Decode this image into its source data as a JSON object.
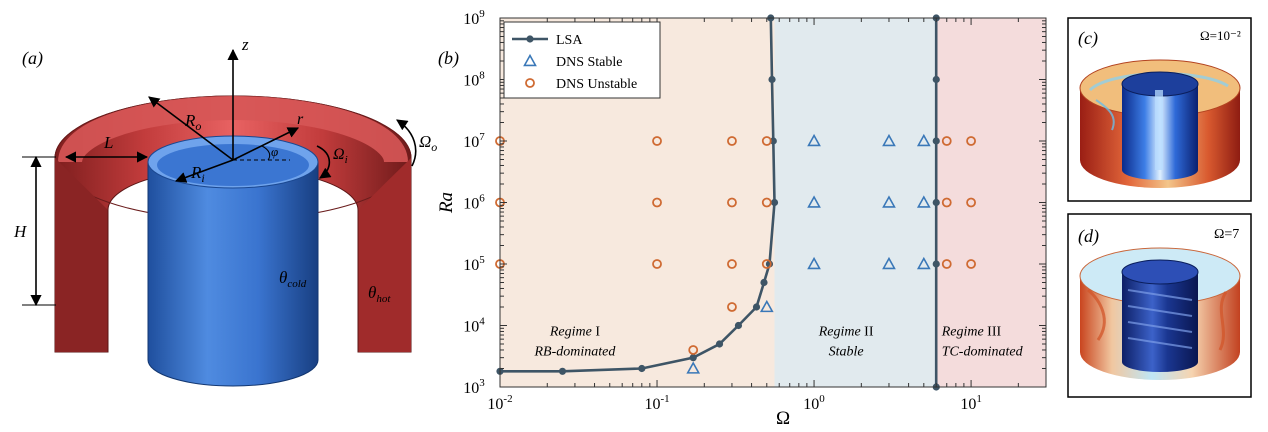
{
  "panels": {
    "a": {
      "label": "(a)"
    },
    "b": {
      "label": "(b)"
    },
    "c": {
      "label": "(c)",
      "value": "Ω=10⁻²"
    },
    "d": {
      "label": "(d)",
      "value": "Ω=7"
    }
  },
  "schematic": {
    "z": "z",
    "r": "r",
    "phi": "φ",
    "Ro": "R",
    "Ro_sub": "o",
    "Ri": "R",
    "Ri_sub": "i",
    "L": "L",
    "H": "H",
    "Omega_i": "Ω",
    "Omega_i_sub": "i",
    "Omega_o": "Ω",
    "Omega_o_sub": "o",
    "theta_cold": "θ",
    "theta_cold_sub": "cold",
    "theta_hot": "θ",
    "theta_hot_sub": "hot"
  },
  "chart_data": {
    "type": "scatter",
    "xlabel": "Ω",
    "ylabel": "Ra",
    "xscale": "log",
    "yscale": "log",
    "xlim": [
      0.01,
      30
    ],
    "ylim": [
      1000,
      1000000000
    ],
    "x_ticks": [
      {
        "base": "10",
        "exp": "-2",
        "value": 0.01
      },
      {
        "base": "10",
        "exp": "-1",
        "value": 0.1
      },
      {
        "base": "10",
        "exp": "0",
        "value": 1
      },
      {
        "base": "10",
        "exp": "1",
        "value": 10
      }
    ],
    "y_ticks": [
      {
        "base": "10",
        "exp": "3",
        "value": 1000
      },
      {
        "base": "10",
        "exp": "4",
        "value": 10000
      },
      {
        "base": "10",
        "exp": "5",
        "value": 100000
      },
      {
        "base": "10",
        "exp": "6",
        "value": 1000000
      },
      {
        "base": "10",
        "exp": "7",
        "value": 10000000
      },
      {
        "base": "10",
        "exp": "8",
        "value": 100000000
      },
      {
        "base": "10",
        "exp": "9",
        "value": 1000000000
      }
    ],
    "legend_position": "top-left",
    "regime_colors": [
      "#f7e9de",
      "#e1eaee",
      "#f4dcdc"
    ],
    "regimes": [
      {
        "name": "Regime I",
        "desc": "RB-dominated",
        "x_from": 0.01,
        "x_to": 0.56
      },
      {
        "name": "Regime II",
        "desc": "Stable",
        "x_from": 0.56,
        "x_to": 6
      },
      {
        "name": "Regime III",
        "desc": "TC-dominated",
        "x_from": 6,
        "x_to": 30
      }
    ],
    "series": [
      {
        "name": "LSA",
        "kind": "line",
        "color": "#3e5566",
        "segments": [
          [
            [
              0.01,
              1800
            ],
            [
              0.025,
              1800
            ],
            [
              0.08,
              2000
            ],
            [
              0.17,
              3000
            ],
            [
              0.25,
              5000
            ],
            [
              0.33,
              10000
            ],
            [
              0.43,
              20000
            ],
            [
              0.48,
              50000
            ],
            [
              0.52,
              100000
            ],
            [
              0.56,
              1000000
            ],
            [
              0.55,
              10000000
            ],
            [
              0.54,
              100000000
            ],
            [
              0.53,
              1000000000
            ]
          ],
          [
            [
              6.0,
              1000
            ],
            [
              6.0,
              10000000
            ],
            [
              6.0,
              1000000000
            ]
          ]
        ],
        "markers": [
          [
            0.01,
            1800
          ],
          [
            0.025,
            1800
          ],
          [
            0.08,
            2000
          ],
          [
            0.17,
            3000
          ],
          [
            0.25,
            5000
          ],
          [
            0.33,
            10000
          ],
          [
            0.43,
            20000
          ],
          [
            0.48,
            50000
          ],
          [
            0.52,
            100000
          ],
          [
            0.56,
            1000000
          ],
          [
            0.55,
            10000000
          ],
          [
            0.54,
            100000000
          ],
          [
            0.53,
            1000000000
          ],
          [
            6.0,
            1000
          ],
          [
            6.0,
            100000
          ],
          [
            6.0,
            1000000
          ],
          [
            6.0,
            10000000
          ],
          [
            6.0,
            100000000
          ],
          [
            6.0,
            1000000000
          ]
        ]
      },
      {
        "name": "DNS Stable",
        "kind": "triangle",
        "color": "#3a78b8",
        "points": [
          [
            0.17,
            2000
          ],
          [
            0.5,
            20000
          ],
          [
            1,
            100000
          ],
          [
            3,
            100000
          ],
          [
            5,
            100000
          ],
          [
            1,
            1000000
          ],
          [
            3,
            1000000
          ],
          [
            5,
            1000000
          ],
          [
            1,
            10000000
          ],
          [
            3,
            10000000
          ],
          [
            5,
            10000000
          ]
        ]
      },
      {
        "name": "DNS Unstable",
        "kind": "circle",
        "color": "#cf6a32",
        "points": [
          [
            0.01,
            100000
          ],
          [
            0.1,
            100000
          ],
          [
            0.3,
            100000
          ],
          [
            0.5,
            100000
          ],
          [
            0.01,
            1000000
          ],
          [
            0.1,
            1000000
          ],
          [
            0.3,
            1000000
          ],
          [
            0.5,
            1000000
          ],
          [
            0.01,
            10000000
          ],
          [
            0.1,
            10000000
          ],
          [
            0.3,
            10000000
          ],
          [
            0.5,
            10000000
          ],
          [
            0.3,
            20000
          ],
          [
            0.17,
            4000
          ],
          [
            7,
            100000
          ],
          [
            10,
            100000
          ],
          [
            7,
            1000000
          ],
          [
            10,
            1000000
          ],
          [
            7,
            10000000
          ],
          [
            10,
            10000000
          ]
        ]
      }
    ]
  }
}
